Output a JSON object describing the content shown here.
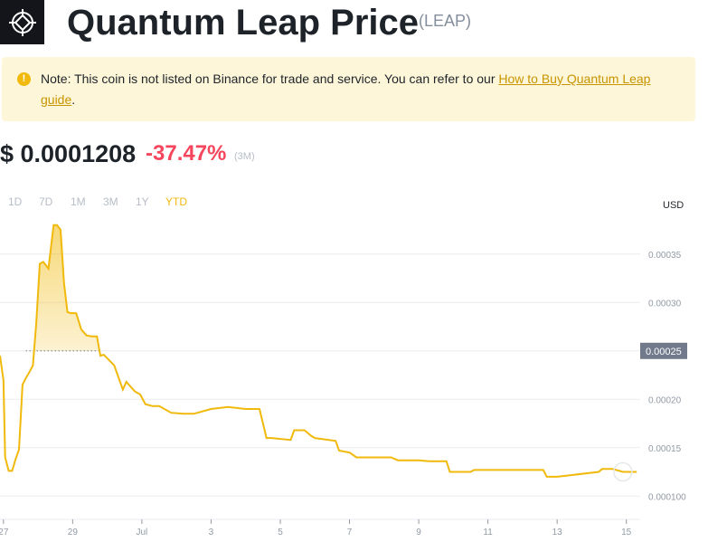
{
  "header": {
    "logo_icon": "quantum-leap-logo-icon",
    "title": "Quantum Leap Price",
    "ticker": "(LEAP)"
  },
  "note": {
    "icon": "exclamation-icon",
    "text": "Note: This coin is not listed on Binance for trade and service. You can refer to our ",
    "link_text": "How to Buy Quantum Leap guide",
    "end": "."
  },
  "price": {
    "value": "$ 0.0001208",
    "change": "-37.47%",
    "period": "(3M)"
  },
  "ranges": [
    "1D",
    "7D",
    "1M",
    "3M",
    "1Y",
    "YTD"
  ],
  "active_range": "YTD",
  "chart_data": {
    "type": "area",
    "currency_label": "USD",
    "x_tick_labels": [
      "27",
      "29",
      "Jul",
      "3",
      "5",
      "7",
      "9",
      "11",
      "13",
      "15"
    ],
    "y_tick_labels": [
      "0.00035",
      "0.00030",
      "0.00020",
      "0.00015",
      "0.000100"
    ],
    "highlighted_label": "0.00025",
    "highlighted_value": 0.00025,
    "ylim": [
      7.5e-05,
      0.00039
    ],
    "x_axis": "day offset from Jun 27",
    "xlim": [
      -0.1,
      18.4
    ],
    "x": [
      -0.1,
      0,
      0.05,
      0.15,
      0.25,
      0.35,
      0.45,
      0.55,
      0.65,
      0.75,
      0.85,
      0.95,
      1.05,
      1.15,
      1.3,
      1.45,
      1.55,
      1.65,
      1.75,
      1.85,
      1.95,
      2.1,
      2.25,
      2.4,
      2.55,
      2.7,
      2.8,
      2.9,
      3.2,
      3.45,
      3.55,
      3.7,
      3.8,
      3.85,
      3.95,
      4.1,
      4.3,
      4.5,
      4.85,
      5.2,
      5.5,
      6.0,
      6.5,
      7.0,
      7.4,
      7.6,
      7.75,
      8.3,
      8.4,
      8.7,
      8.9,
      9.0,
      9.6,
      9.7,
      10.0,
      10.2,
      11.2,
      11.4,
      11.6,
      12.0,
      12.3,
      12.8,
      12.9,
      13.5,
      13.6,
      14.0,
      14.5,
      15.0,
      15.6,
      15.7,
      16.0,
      17.2,
      17.3,
      17.6,
      17.9,
      18.3
    ],
    "y": [
      0.000245,
      0.00022,
      0.00014,
      0.000126,
      0.000126,
      0.000138,
      0.000148,
      0.000215,
      0.000222,
      0.000228,
      0.000235,
      0.00028,
      0.00034,
      0.000342,
      0.000335,
      0.00038,
      0.00038,
      0.000375,
      0.00032,
      0.00029,
      0.000289,
      0.000289,
      0.000272,
      0.000266,
      0.000265,
      0.000265,
      0.000245,
      0.000246,
      0.000235,
      0.00021,
      0.000218,
      0.000212,
      0.000208,
      0.000207,
      0.000205,
      0.000195,
      0.000193,
      0.000193,
      0.000186,
      0.000185,
      0.000185,
      0.00019,
      0.000192,
      0.00019,
      0.00019,
      0.00016,
      0.00016,
      0.000158,
      0.000168,
      0.000168,
      0.000162,
      0.00016,
      0.000157,
      0.000147,
      0.000145,
      0.00014,
      0.00014,
      0.000137,
      0.000137,
      0.000137,
      0.000136,
      0.000136,
      0.000125,
      0.000125,
      0.000127,
      0.000127,
      0.000127,
      0.000127,
      0.000127,
      0.00012,
      0.00012,
      0.000125,
      0.000128,
      0.000128,
      0.000125,
      0.000125
    ]
  }
}
